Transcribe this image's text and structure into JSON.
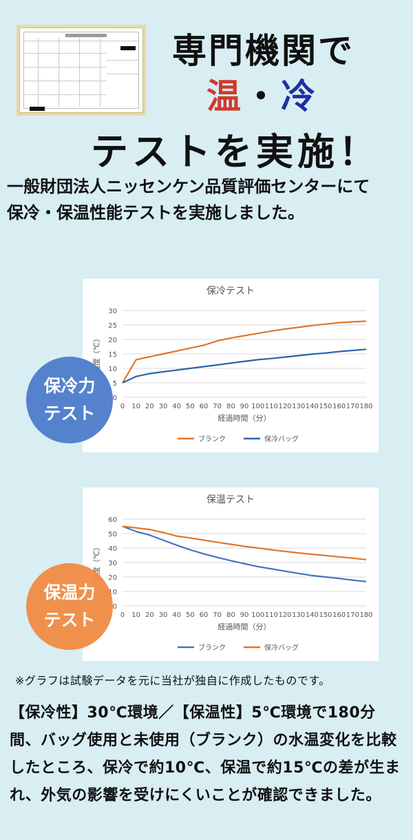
{
  "header": {
    "line1": "専門機関で",
    "warm": "温",
    "dot": "・",
    "cool": "冷",
    "line3": "テストを実施！"
  },
  "subtitle": {
    "line1": "一般財団法人ニッセンケン品質評価センターにて",
    "line2": "保冷・保温性能テストを実施しました。"
  },
  "certificate_icon": "test-report-document",
  "badges": {
    "cool_line1": "保冷力",
    "cool_line2": "テスト",
    "warm_line1": "保温力",
    "warm_line2": "テスト"
  },
  "colors": {
    "background": "#d8eef3",
    "orange": "#e0752a",
    "blue": "#2a65a8",
    "warm_text": "#d03a2c",
    "cool_text": "#1f2fa5"
  },
  "chart_data": [
    {
      "type": "line",
      "title": "保冷テスト",
      "xlabel": "経過時間（分）",
      "ylabel": "温度（℃）",
      "x": [
        0,
        10,
        20,
        30,
        40,
        50,
        60,
        70,
        80,
        90,
        100,
        110,
        120,
        130,
        140,
        150,
        160,
        170,
        180
      ],
      "ylim": [
        0,
        30
      ],
      "yticks": [
        0,
        5,
        10,
        15,
        20,
        25,
        30
      ],
      "grid": true,
      "legend": "bottom",
      "series": [
        {
          "name": "ブランク",
          "color": "#e0752a",
          "values": [
            5,
            13,
            14,
            15,
            16,
            17,
            18,
            19.5,
            20.5,
            21.3,
            22.1,
            22.9,
            23.6,
            24.2,
            24.8,
            25.3,
            25.8,
            26.1,
            26.3
          ]
        },
        {
          "name": "保冷バッグ",
          "color": "#2a65a8",
          "values": [
            5,
            7.2,
            8.2,
            8.8,
            9.4,
            10,
            10.6,
            11.2,
            11.8,
            12.4,
            13,
            13.4,
            13.9,
            14.4,
            14.9,
            15.3,
            15.8,
            16.2,
            16.6
          ]
        }
      ]
    },
    {
      "type": "line",
      "title": "保温テスト",
      "xlabel": "経過時間（分）",
      "ylabel": "温度（℃）",
      "x": [
        0,
        10,
        20,
        30,
        40,
        50,
        60,
        70,
        80,
        90,
        100,
        110,
        120,
        130,
        140,
        150,
        160,
        170,
        180
      ],
      "ylim": [
        0,
        60
      ],
      "yticks": [
        0,
        10,
        20,
        30,
        40,
        50,
        60
      ],
      "grid": true,
      "legend": "bottom",
      "series": [
        {
          "name": "ブランク",
          "color": "#4472c4",
          "values": [
            55,
            51.5,
            49,
            45.5,
            42,
            38.8,
            36,
            33.5,
            31.3,
            29.2,
            27.2,
            25.6,
            24,
            22.5,
            21,
            20,
            19,
            17.8,
            16.8
          ]
        },
        {
          "name": "保冷バッグ",
          "color": "#e0752a",
          "values": [
            55,
            54,
            52.8,
            50.8,
            48.3,
            47,
            45.5,
            44,
            42.6,
            41.2,
            40,
            38.8,
            37.7,
            36.6,
            35.7,
            34.8,
            33.9,
            33,
            32
          ]
        }
      ]
    }
  ],
  "note": "※グラフは試験データを元に当社が独自に作成したものです。",
  "description": "【保冷性】30℃環境／【保温性】5℃環境で180分間、バッグ使用と未使用（ブランク）の水温変化を比較したところ、保冷で約10℃、保温で約15℃の差が生まれ、外気の影響を受けにくいことが確認できました。"
}
